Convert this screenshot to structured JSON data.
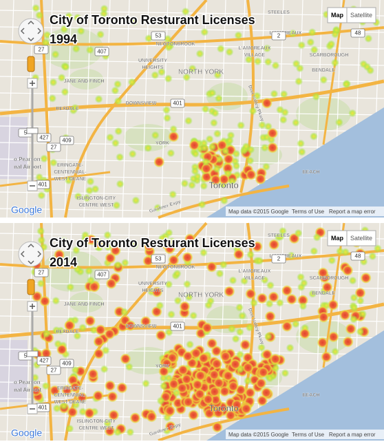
{
  "panels": [
    {
      "title": "City of Toronto Resturant Licenses",
      "year": "1994",
      "buttons": [
        "Map",
        "Satellite"
      ],
      "logo": "Google",
      "attribution": {
        "map_data": "Map data ©2015 Google",
        "terms": "Terms of Use",
        "report": "Report a map error"
      }
    },
    {
      "title": "City of Toronto Resturant Licenses",
      "year": "2014",
      "buttons": [
        "Map",
        "Satellite"
      ],
      "logo": "Google",
      "attribution": {
        "map_data": "Map data ©2015 Google",
        "terms": "Terms of Use",
        "report": "Report a map error"
      }
    }
  ],
  "place_labels": [
    "STEELES",
    "L'AMOREAUX",
    "NEWTONBROOK",
    "L'AMOREAUX",
    "VILLAGE",
    "SCARBOROUGH",
    "BENDALE",
    "NORTH YORK",
    "UNIVERSITY",
    "HEIGHTS",
    "JANE AND FINCH",
    "DOWNSVIEW",
    "REXDALE",
    "YORK",
    "Don Valley Pkwy",
    "ERINGATE-",
    "CENTENNIAL-",
    "WEST DEANE",
    "ISLINGTON-CITY",
    "CENTRE WEST",
    "Toronto",
    "BEACH",
    "Gardiner Expy",
    "o Pearson",
    "nal Airport"
  ],
  "highway_shields": [
    "407",
    "27",
    "53",
    "2",
    "48",
    "401",
    "427",
    "409",
    "27",
    "5",
    "401"
  ]
}
